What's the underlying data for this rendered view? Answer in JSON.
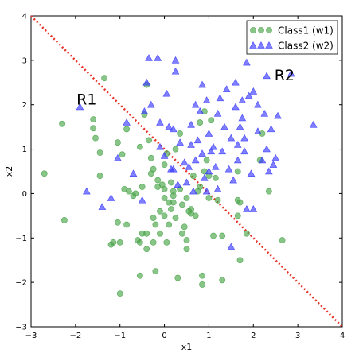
{
  "chart_data": {
    "type": "scatter",
    "title": "",
    "xlabel": "x1",
    "ylabel": "x2",
    "xlim": [
      -3,
      4
    ],
    "ylim": [
      -3,
      4
    ],
    "xticks": [
      -3,
      -2,
      -1,
      0,
      1,
      2,
      3,
      4
    ],
    "yticks": [
      -3,
      -2,
      -1,
      0,
      1,
      2,
      3,
      4
    ],
    "xtick_labels": [
      "−3",
      "−2",
      "−1",
      "0",
      "1",
      "2",
      "3",
      "4"
    ],
    "ytick_labels": [
      "−3",
      "−2",
      "−1",
      "0",
      "1",
      "2",
      "3",
      "4"
    ],
    "grid": false,
    "legend": "top-right",
    "decision_boundary": {
      "points": [
        [
          -3,
          4
        ],
        [
          4,
          -3
        ]
      ],
      "color": "#e8352b",
      "style": "dotted"
    },
    "annotations": [
      {
        "text": "R1",
        "x": -1.75,
        "y": 2.0
      },
      {
        "text": "R2",
        "x": 2.7,
        "y": 2.55
      }
    ],
    "series": [
      {
        "name": "Class1 (w1)",
        "marker": "circle",
        "color": "#4aa54a",
        "points": [
          [
            -2.7,
            0.45
          ],
          [
            -2.3,
            1.57
          ],
          [
            -2.25,
            -0.6
          ],
          [
            -1.6,
            1.67
          ],
          [
            -1.6,
            1.47
          ],
          [
            -1.55,
            1.25
          ],
          [
            -1.45,
            0.92
          ],
          [
            -1.45,
            0.4
          ],
          [
            -1.35,
            2.6
          ],
          [
            -1.2,
            -1.15
          ],
          [
            -1.15,
            -1.1
          ],
          [
            -1.05,
            1.15
          ],
          [
            -1.05,
            -0.65
          ],
          [
            -1.0,
            -1.1
          ],
          [
            -1.0,
            -2.25
          ],
          [
            -0.95,
            0.88
          ],
          [
            -0.9,
            0.1
          ],
          [
            -0.85,
            -0.7
          ],
          [
            -0.85,
            1.45
          ],
          [
            -0.8,
            0.05
          ],
          [
            -0.7,
            -0.05
          ],
          [
            -0.65,
            0.0
          ],
          [
            -0.6,
            -1.05
          ],
          [
            -0.55,
            1.05
          ],
          [
            -0.55,
            -1.1
          ],
          [
            -0.55,
            -1.85
          ],
          [
            -0.5,
            0.15
          ],
          [
            -0.5,
            -0.9
          ],
          [
            -0.45,
            1.78
          ],
          [
            -0.4,
            -0.9
          ],
          [
            -0.4,
            2.45
          ],
          [
            -0.4,
            -1.25
          ],
          [
            -0.35,
            1.2
          ],
          [
            -0.3,
            0.8
          ],
          [
            -0.3,
            0.45
          ],
          [
            -0.25,
            0.55
          ],
          [
            -0.25,
            -0.55
          ],
          [
            -0.25,
            -1.1
          ],
          [
            -0.2,
            -0.7
          ],
          [
            -0.2,
            -1.75
          ],
          [
            -0.15,
            0.3
          ],
          [
            -0.15,
            0.15
          ],
          [
            -0.1,
            -0.4
          ],
          [
            -0.1,
            -0.9
          ],
          [
            -0.05,
            0.2
          ],
          [
            0.0,
            0.1
          ],
          [
            0.0,
            0.65
          ],
          [
            0.0,
            -0.5
          ],
          [
            0.0,
            -0.1
          ],
          [
            0.05,
            -1.1
          ],
          [
            0.05,
            0.9
          ],
          [
            0.1,
            -0.7
          ],
          [
            0.1,
            -0.2
          ],
          [
            0.15,
            0.25
          ],
          [
            0.15,
            -0.35
          ],
          [
            0.2,
            -0.05
          ],
          [
            0.2,
            0.05
          ],
          [
            0.2,
            -0.2
          ],
          [
            0.25,
            -0.55
          ],
          [
            0.25,
            1.0
          ],
          [
            0.3,
            -1.9
          ],
          [
            0.35,
            0.1
          ],
          [
            0.35,
            1.35
          ],
          [
            0.4,
            -0.9
          ],
          [
            0.4,
            -0.25
          ],
          [
            0.45,
            -0.75
          ],
          [
            0.5,
            -1.25
          ],
          [
            0.5,
            -1.05
          ],
          [
            0.5,
            -0.1
          ],
          [
            0.55,
            -0.4
          ],
          [
            0.6,
            -0.35
          ],
          [
            0.6,
            -0.45
          ],
          [
            0.65,
            0.4
          ],
          [
            0.7,
            -0.5
          ],
          [
            0.75,
            0.05
          ],
          [
            0.8,
            0.15
          ],
          [
            0.8,
            1.6
          ],
          [
            0.85,
            -2.05
          ],
          [
            0.85,
            -1.85
          ],
          [
            0.9,
            0.5
          ],
          [
            0.95,
            0.75
          ],
          [
            1.0,
            -0.1
          ],
          [
            1.0,
            0.4
          ],
          [
            1.05,
            1.65
          ],
          [
            1.1,
            -0.95
          ],
          [
            1.15,
            0.35
          ],
          [
            1.2,
            -0.15
          ],
          [
            1.3,
            -0.95
          ],
          [
            1.3,
            -1.95
          ],
          [
            1.65,
            0.5
          ],
          [
            1.65,
            -0.15
          ],
          [
            1.7,
            -0.2
          ],
          [
            1.7,
            -1.5
          ],
          [
            1.65,
            -0.5
          ],
          [
            1.85,
            -0.9
          ],
          [
            2.15,
            0.75
          ],
          [
            2.2,
            1.35
          ],
          [
            2.35,
            0.05
          ],
          [
            2.65,
            -1.05
          ],
          [
            0.9,
            1.85
          ]
        ]
      },
      {
        "name": "Class2 (w2)",
        "marker": "triangle",
        "color": "#3b3bff",
        "points": [
          [
            -1.9,
            1.95
          ],
          [
            -1.75,
            0.05
          ],
          [
            -1.4,
            -0.3
          ],
          [
            -1.2,
            -0.1
          ],
          [
            -1.05,
            0.8
          ],
          [
            -0.85,
            1.6
          ],
          [
            -0.5,
            -0.15
          ],
          [
            -0.45,
            1.85
          ],
          [
            -0.4,
            2.5
          ],
          [
            -0.35,
            3.05
          ],
          [
            -0.3,
            2.0
          ],
          [
            -0.15,
            3.05
          ],
          [
            -0.1,
            1.05
          ],
          [
            -0.1,
            1.6
          ],
          [
            0.0,
            0.85
          ],
          [
            0.05,
            2.25
          ],
          [
            0.1,
            1.5
          ],
          [
            0.15,
            0.55
          ],
          [
            0.2,
            0.55
          ],
          [
            0.2,
            1.45
          ],
          [
            0.25,
            3.0
          ],
          [
            0.25,
            2.75
          ],
          [
            0.35,
            1.15
          ],
          [
            0.45,
            0.7
          ],
          [
            0.5,
            0.25
          ],
          [
            0.55,
            0.6
          ],
          [
            0.6,
            1.1
          ],
          [
            0.6,
            1.55
          ],
          [
            0.7,
            2.0
          ],
          [
            0.7,
            0.75
          ],
          [
            0.75,
            1.2
          ],
          [
            0.8,
            1.85
          ],
          [
            0.85,
            2.45
          ],
          [
            0.85,
            0.9
          ],
          [
            0.9,
            0.35
          ],
          [
            0.95,
            0.05
          ],
          [
            1.0,
            0.5
          ],
          [
            1.0,
            1.35
          ],
          [
            1.05,
            0.95
          ],
          [
            1.1,
            1.05
          ],
          [
            1.15,
            0.6
          ],
          [
            1.2,
            1.8
          ],
          [
            1.25,
            2.15
          ],
          [
            1.3,
            0.95
          ],
          [
            1.35,
            1.5
          ],
          [
            1.4,
            2.35
          ],
          [
            1.45,
            0.55
          ],
          [
            1.5,
            1.25
          ],
          [
            1.55,
            0.3
          ],
          [
            1.6,
            1.95
          ],
          [
            1.6,
            2.5
          ],
          [
            1.65,
            0.75
          ],
          [
            1.65,
            1.1
          ],
          [
            1.7,
            1.5
          ],
          [
            1.75,
            1.7
          ],
          [
            1.75,
            2.1
          ],
          [
            1.8,
            0.95
          ],
          [
            1.8,
            1.25
          ],
          [
            1.85,
            -0.35
          ],
          [
            1.9,
            2.2
          ],
          [
            1.95,
            0.45
          ],
          [
            2.0,
            -0.35
          ],
          [
            2.1,
            2.0
          ],
          [
            2.1,
            1.4
          ],
          [
            2.2,
            0.75
          ],
          [
            2.25,
            1.8
          ],
          [
            2.3,
            1.0
          ],
          [
            2.35,
            0.5
          ],
          [
            2.4,
            1.45
          ],
          [
            2.45,
            0.65
          ],
          [
            2.5,
            0.8
          ],
          [
            2.55,
            1.75
          ],
          [
            2.85,
            2.7
          ],
          [
            3.35,
            1.55
          ],
          [
            1.2,
            0.1
          ],
          [
            2.0,
            2.3
          ],
          [
            1.85,
            2.95
          ],
          [
            1.5,
            -1.2
          ],
          [
            2.3,
            2.65
          ],
          [
            0.95,
            2.1
          ],
          [
            0.65,
            0.05
          ],
          [
            0.3,
            0.2
          ],
          [
            -0.7,
            0.45
          ]
        ]
      }
    ]
  }
}
